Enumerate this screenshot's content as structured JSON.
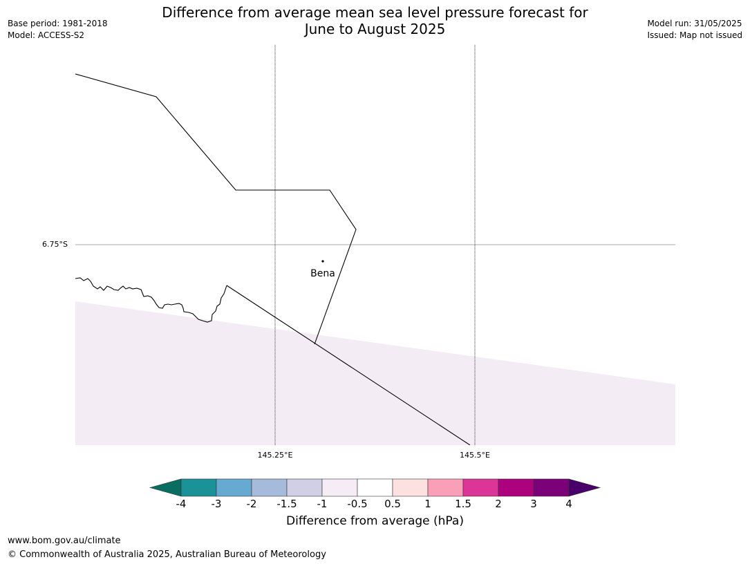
{
  "header": {
    "title_line1": "Difference from average mean sea level pressure forecast for",
    "title_line2": "June to August 2025",
    "base_period": "Base period: 1981-2018",
    "model": "Model: ACCESS-S2",
    "model_run": "Model run: 31/05/2025",
    "issued": "Issued: Map not issued"
  },
  "map": {
    "lat_label": "6.75°S",
    "lon_labels": [
      "145.25°E",
      "145.5°E"
    ],
    "place": "Bena",
    "shading_color": "#f3ecf5"
  },
  "colorbar": {
    "title": "Difference from average (hPa)",
    "ticks": [
      "-4",
      "-3",
      "-2",
      "-1.5",
      "-1",
      "-0.5",
      "0.5",
      "1",
      "1.5",
      "2",
      "3",
      "4"
    ],
    "colors": [
      "#086e62",
      "#1b9198",
      "#66a9d1",
      "#a6bbdc",
      "#d0cfe6",
      "#f5ecf6",
      "#ffffff",
      "#fde0e0",
      "#f99fb7",
      "#dd3497",
      "#ae017e",
      "#7a0177",
      "#49006a"
    ]
  },
  "footer": {
    "url": "www.bom.gov.au/climate",
    "copyright": "© Commonwealth of Australia 2025, Australian Bureau of Meteorology"
  }
}
